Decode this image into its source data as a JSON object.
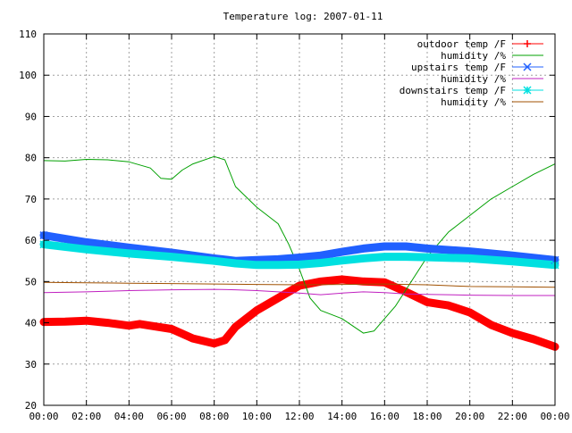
{
  "chart_data": {
    "type": "line",
    "title": "Temperature log: 2007-01-11",
    "xlabel": "",
    "ylabel": "",
    "xlim": [
      "00:00",
      "24:00"
    ],
    "ylim": [
      20,
      110
    ],
    "grid": true,
    "legend_position": "top-right",
    "x_tick_labels": [
      "00:00",
      "02:00",
      "04:00",
      "06:00",
      "08:00",
      "10:00",
      "12:00",
      "14:00",
      "16:00",
      "18:00",
      "20:00",
      "22:00",
      "00:00"
    ],
    "y_tick_labels": [
      "20",
      "30",
      "40",
      "50",
      "60",
      "70",
      "80",
      "90",
      "100",
      "110"
    ],
    "series": [
      {
        "name": "outdoor temp /F",
        "color": "#ff0000",
        "marker": "plus",
        "points": [
          [
            0,
            40.2
          ],
          [
            1,
            40.3
          ],
          [
            2,
            40.5
          ],
          [
            3,
            40
          ],
          [
            4,
            39.3
          ],
          [
            4.5,
            39.7
          ],
          [
            5,
            39.3
          ],
          [
            6,
            38.5
          ],
          [
            7,
            36.2
          ],
          [
            8,
            35
          ],
          [
            8.5,
            35.8
          ],
          [
            9,
            39
          ],
          [
            10,
            43
          ],
          [
            11,
            46
          ],
          [
            12,
            49
          ],
          [
            13,
            50
          ],
          [
            14,
            50.5
          ],
          [
            15,
            50
          ],
          [
            16,
            49.8
          ],
          [
            17,
            47.5
          ],
          [
            18,
            45
          ],
          [
            18.5,
            44.6
          ],
          [
            19,
            44.2
          ],
          [
            20,
            42.5
          ],
          [
            21,
            39.5
          ],
          [
            22,
            37.5
          ],
          [
            23,
            36
          ],
          [
            24,
            34.2
          ]
        ]
      },
      {
        "name": "humidity /%",
        "color": "#00a000",
        "marker": "none",
        "points": [
          [
            0,
            79.3
          ],
          [
            1,
            79.2
          ],
          [
            2,
            79.6
          ],
          [
            3,
            79.5
          ],
          [
            4,
            79
          ],
          [
            5,
            77.5
          ],
          [
            5.5,
            75
          ],
          [
            6,
            74.8
          ],
          [
            6.5,
            77
          ],
          [
            7,
            78.5
          ],
          [
            8,
            80.3
          ],
          [
            8.5,
            79.5
          ],
          [
            9,
            73
          ],
          [
            10,
            68
          ],
          [
            11,
            64
          ],
          [
            11.5,
            59
          ],
          [
            12,
            53
          ],
          [
            12.5,
            46
          ],
          [
            13,
            43
          ],
          [
            14,
            41
          ],
          [
            15,
            37.5
          ],
          [
            15.5,
            38
          ],
          [
            16,
            41
          ],
          [
            16.5,
            44
          ],
          [
            17,
            48
          ],
          [
            18,
            56
          ],
          [
            19,
            62
          ],
          [
            20,
            66
          ],
          [
            21,
            70
          ],
          [
            22,
            73
          ],
          [
            23,
            76
          ],
          [
            24,
            78.5
          ]
        ]
      },
      {
        "name": "upstairs temp /F",
        "color": "#2060ff",
        "marker": "x",
        "points": [
          [
            0,
            61.2
          ],
          [
            2,
            59.5
          ],
          [
            4,
            58.2
          ],
          [
            6,
            57
          ],
          [
            8,
            55.6
          ],
          [
            9,
            55
          ],
          [
            10,
            55.2
          ],
          [
            11,
            55.4
          ],
          [
            12,
            55.8
          ],
          [
            13,
            56.3
          ],
          [
            14,
            57.2
          ],
          [
            15,
            58
          ],
          [
            16,
            58.5
          ],
          [
            17,
            58.5
          ],
          [
            18,
            58
          ],
          [
            20,
            57.3
          ],
          [
            22,
            56.3
          ],
          [
            24,
            55.2
          ]
        ]
      },
      {
        "name": "humidity /%",
        "color": "#c020c0",
        "marker": "none",
        "points": [
          [
            0,
            47.3
          ],
          [
            2,
            47.5
          ],
          [
            4,
            47.8
          ],
          [
            6,
            48
          ],
          [
            8,
            48.1
          ],
          [
            9,
            48
          ],
          [
            10,
            47.8
          ],
          [
            11,
            47.5
          ],
          [
            12,
            47.2
          ],
          [
            13,
            46.8
          ],
          [
            14,
            47.2
          ],
          [
            15,
            47.5
          ],
          [
            16,
            47.3
          ],
          [
            17,
            47
          ],
          [
            18,
            46.9
          ],
          [
            20,
            46.7
          ],
          [
            22,
            46.6
          ],
          [
            24,
            46.6
          ]
        ]
      },
      {
        "name": "downstairs temp /F",
        "color": "#00e0e0",
        "marker": "star",
        "points": [
          [
            0,
            59
          ],
          [
            2,
            57.8
          ],
          [
            4,
            56.8
          ],
          [
            6,
            56
          ],
          [
            8,
            55
          ],
          [
            9,
            54.4
          ],
          [
            10,
            54
          ],
          [
            11,
            54
          ],
          [
            12,
            54.1
          ],
          [
            13,
            54.5
          ],
          [
            14,
            55.1
          ],
          [
            15,
            55.6
          ],
          [
            16,
            56
          ],
          [
            17,
            56
          ],
          [
            18,
            55.9
          ],
          [
            20,
            55.6
          ],
          [
            22,
            54.9
          ],
          [
            24,
            54
          ]
        ]
      },
      {
        "name": "humidity /%",
        "color": "#a05000",
        "marker": "none",
        "points": [
          [
            0,
            49.8
          ],
          [
            2,
            49.7
          ],
          [
            4,
            49.6
          ],
          [
            6,
            49.5
          ],
          [
            8,
            49.4
          ],
          [
            10,
            49.3
          ],
          [
            12,
            49.2
          ],
          [
            14,
            49.3
          ],
          [
            16,
            49.4
          ],
          [
            18,
            49.2
          ],
          [
            20,
            48.8
          ],
          [
            22,
            48.7
          ],
          [
            24,
            48.6
          ]
        ]
      }
    ]
  }
}
